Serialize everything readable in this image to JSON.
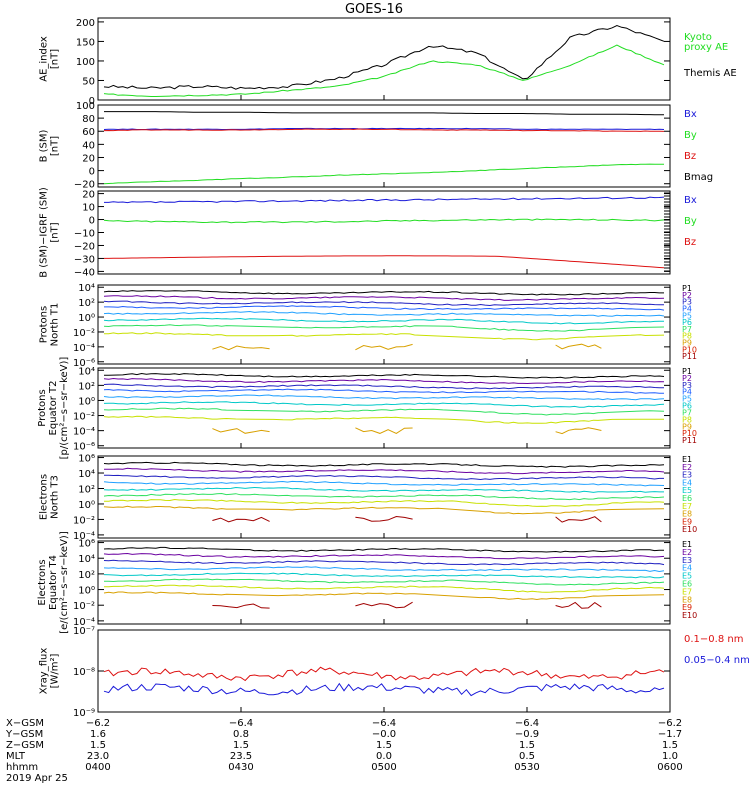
{
  "title": "GOES-16",
  "colors": {
    "black": "#000000",
    "blue": "#1a1ad9",
    "green": "#22dd22",
    "red": "#dd1111",
    "brown": "#a00000",
    "yellow": "#cccc00"
  },
  "panels": [
    {
      "id": "ae",
      "ylabel": [
        "AE_index",
        "[nT]"
      ],
      "ylim": [
        0,
        210
      ],
      "scale": "linear",
      "ticks": [
        {
          "v": 0,
          "t": "0"
        },
        {
          "v": 50,
          "t": "50"
        },
        {
          "v": 100,
          "t": "100"
        },
        {
          "v": 150,
          "t": "150"
        },
        {
          "v": 200,
          "t": "200"
        }
      ],
      "legend": [
        {
          "text": "Kyoto",
          "color": "#22dd22"
        },
        {
          "text": "proxy AE",
          "color": "#22dd22"
        },
        {
          "text": "Themis AE",
          "color": "#000000"
        }
      ]
    },
    {
      "id": "bsm",
      "ylabel": [
        "B (SM)",
        "[nT]"
      ],
      "ylim": [
        -25,
        100
      ],
      "scale": "linear",
      "ticks": [
        {
          "v": -20,
          "t": "−20"
        },
        {
          "v": 0,
          "t": "0"
        },
        {
          "v": 20,
          "t": "20"
        },
        {
          "v": 40,
          "t": "40"
        },
        {
          "v": 60,
          "t": "60"
        },
        {
          "v": 80,
          "t": "80"
        },
        {
          "v": 100,
          "t": "100"
        }
      ],
      "legend": [
        {
          "text": "Bx",
          "color": "#1a1ad9"
        },
        {
          "text": "By",
          "color": "#22dd22"
        },
        {
          "text": "Bz",
          "color": "#dd1111"
        },
        {
          "text": "Bmag",
          "color": "#000000"
        }
      ]
    },
    {
      "id": "bigrf",
      "ylabel": [
        "B (SM)−IGRF (SM)",
        "[nT]"
      ],
      "ylim": [
        -42,
        22
      ],
      "scale": "linear",
      "ticks": [
        {
          "v": -40,
          "t": "−40"
        },
        {
          "v": -30,
          "t": "−30"
        },
        {
          "v": -20,
          "t": "−20"
        },
        {
          "v": -10,
          "t": "−10"
        },
        {
          "v": 0,
          "t": "0"
        },
        {
          "v": 10,
          "t": "10"
        },
        {
          "v": 20,
          "t": "20"
        }
      ],
      "legend": [
        {
          "text": "Bx",
          "color": "#1a1ad9"
        },
        {
          "text": "By",
          "color": "#22dd22"
        },
        {
          "text": "Bz",
          "color": "#dd1111"
        }
      ]
    },
    {
      "id": "pn",
      "ylabel": [
        "Protons",
        "North T1"
      ],
      "ylim": [
        -6.3,
        4.3
      ],
      "scale": "log",
      "ticks": [
        {
          "v": 4,
          "t": "10⁴"
        },
        {
          "v": 2,
          "t": "10²"
        },
        {
          "v": 0,
          "t": "10⁰"
        },
        {
          "v": -2,
          "t": "10⁻²"
        },
        {
          "v": -4,
          "t": "10⁻⁴"
        },
        {
          "v": -6,
          "t": "10⁻⁶"
        }
      ],
      "channels": [
        {
          "name": "P1",
          "color": "#000000"
        },
        {
          "name": "P2",
          "color": "#6a00a0"
        },
        {
          "name": "P3",
          "color": "#2020c0"
        },
        {
          "name": "P4",
          "color": "#2060ff"
        },
        {
          "name": "P5",
          "color": "#20a0ff"
        },
        {
          "name": "P6",
          "color": "#00c8c8"
        },
        {
          "name": "P7",
          "color": "#30e060"
        },
        {
          "name": "P8",
          "color": "#c8e000"
        },
        {
          "name": "P9",
          "color": "#d8a000"
        },
        {
          "name": "P10",
          "color": "#d82000"
        },
        {
          "name": "P11",
          "color": "#a00000"
        }
      ]
    },
    {
      "id": "pe",
      "ylabel": [
        "Protons",
        "Equator T2",
        "[p/(cm²−s−sr−keV)]"
      ],
      "ylim": [
        -6.3,
        4.3
      ],
      "scale": "log",
      "ticks": [
        {
          "v": 4,
          "t": "10⁴"
        },
        {
          "v": 2,
          "t": "10²"
        },
        {
          "v": 0,
          "t": "10⁰"
        },
        {
          "v": -2,
          "t": "10⁻²"
        },
        {
          "v": -4,
          "t": "10⁻⁴"
        },
        {
          "v": -6,
          "t": "10⁻⁶"
        }
      ],
      "channels": [
        {
          "name": "P1",
          "color": "#000000"
        },
        {
          "name": "P2",
          "color": "#6a00a0"
        },
        {
          "name": "P3",
          "color": "#2020c0"
        },
        {
          "name": "P4",
          "color": "#2060ff"
        },
        {
          "name": "P5",
          "color": "#20a0ff"
        },
        {
          "name": "P6",
          "color": "#00c8c8"
        },
        {
          "name": "P7",
          "color": "#30e060"
        },
        {
          "name": "P8",
          "color": "#c8e000"
        },
        {
          "name": "P9",
          "color": "#d8a000"
        },
        {
          "name": "P10",
          "color": "#d82000"
        },
        {
          "name": "P11",
          "color": "#a00000"
        }
      ]
    },
    {
      "id": "en",
      "ylabel": [
        "Electrons",
        "North T3"
      ],
      "ylim": [
        -4.4,
        6.2
      ],
      "scale": "log",
      "ticks": [
        {
          "v": 6,
          "t": "10⁶"
        },
        {
          "v": 4,
          "t": "10⁴"
        },
        {
          "v": 2,
          "t": "10²"
        },
        {
          "v": 0,
          "t": "10⁰"
        },
        {
          "v": -2,
          "t": "10⁻²"
        },
        {
          "v": -4,
          "t": "10⁻⁴"
        }
      ],
      "channels": [
        {
          "name": "E1",
          "color": "#000000"
        },
        {
          "name": "E2",
          "color": "#6a00a0"
        },
        {
          "name": "E3",
          "color": "#2020c0"
        },
        {
          "name": "E4",
          "color": "#20a0ff"
        },
        {
          "name": "E5",
          "color": "#00c8c8"
        },
        {
          "name": "E6",
          "color": "#30e060"
        },
        {
          "name": "E7",
          "color": "#c8e000"
        },
        {
          "name": "E8",
          "color": "#d8a000"
        },
        {
          "name": "E9",
          "color": "#d82000"
        },
        {
          "name": "E10",
          "color": "#a00000"
        }
      ]
    },
    {
      "id": "ee",
      "ylabel": [
        "Electrons",
        "Equator T4",
        "[e/(cm²−s−sr−keV)]"
      ],
      "ylim": [
        -4.4,
        6.2
      ],
      "scale": "log",
      "ticks": [
        {
          "v": 6,
          "t": "10⁶"
        },
        {
          "v": 4,
          "t": "10⁴"
        },
        {
          "v": 2,
          "t": "10²"
        },
        {
          "v": 0,
          "t": "10⁰"
        },
        {
          "v": -2,
          "t": "10⁻²"
        },
        {
          "v": -4,
          "t": "10⁻⁴"
        }
      ],
      "channels": [
        {
          "name": "E1",
          "color": "#000000"
        },
        {
          "name": "E2",
          "color": "#6a00a0"
        },
        {
          "name": "E3",
          "color": "#2020c0"
        },
        {
          "name": "E4",
          "color": "#20a0ff"
        },
        {
          "name": "E5",
          "color": "#00c8c8"
        },
        {
          "name": "E6",
          "color": "#30e060"
        },
        {
          "name": "E7",
          "color": "#c8e000"
        },
        {
          "name": "E8",
          "color": "#d8a000"
        },
        {
          "name": "E9",
          "color": "#d82000"
        },
        {
          "name": "E10",
          "color": "#a00000"
        }
      ]
    },
    {
      "id": "xray",
      "ylabel": [
        "Xray_flux",
        "[W/m²]"
      ],
      "ylim": [
        -9.0,
        -7.0
      ],
      "scale": "log",
      "ticks": [
        {
          "v": -7,
          "t": "10⁻⁷"
        },
        {
          "v": -8,
          "t": "10⁻⁸"
        },
        {
          "v": -9,
          "t": "10⁻⁹"
        }
      ],
      "legend": [
        {
          "text": "0.1−0.8 nm",
          "color": "#dd1111"
        },
        {
          "text": "0.05−0.4 nm",
          "color": "#1a1ad9"
        }
      ]
    }
  ],
  "xaxis": {
    "rows": [
      {
        "label": "X−GSM",
        "values": [
          "−6.2",
          "−6.4",
          "−6.4",
          "−6.4",
          "−6.2"
        ]
      },
      {
        "label": "Y−GSM",
        "values": [
          "1.6",
          "0.8",
          "−0.0",
          "−0.9",
          "−1.7"
        ]
      },
      {
        "label": "Z−GSM",
        "values": [
          "1.5",
          "1.5",
          "1.5",
          "1.5",
          "1.5"
        ]
      },
      {
        "label": "MLT",
        "values": [
          "23.0",
          "23.5",
          "0.0",
          "0.5",
          "1.0"
        ]
      },
      {
        "label": "hhmm",
        "values": [
          "0400",
          "0430",
          "0500",
          "0530",
          "0600"
        ]
      }
    ],
    "date": "2019 Apr 25"
  },
  "chart_data": {
    "type": "line",
    "title": "GOES-16",
    "x_unit": "UT hhmm",
    "x": [
      "0400",
      "0410",
      "0420",
      "0430",
      "0440",
      "0450",
      "0500",
      "0510",
      "0520",
      "0530",
      "0540",
      "0550",
      "0600"
    ],
    "series": [
      {
        "name": "Themis AE",
        "values": [
          35,
          30,
          35,
          30,
          35,
          55,
          90,
          140,
          120,
          50,
          160,
          190,
          150
        ]
      },
      {
        "name": "Kyoto proxy AE",
        "values": [
          15,
          10,
          12,
          15,
          25,
          35,
          60,
          100,
          90,
          50,
          90,
          140,
          90
        ]
      },
      {
        "name": "Bmag",
        "values": [
          90,
          90,
          89,
          89,
          88,
          88,
          88,
          88,
          87,
          87,
          86,
          86,
          85
        ]
      },
      {
        "name": "Bx",
        "values": [
          63,
          63,
          63,
          63,
          64,
          64,
          64,
          64,
          64,
          63,
          63,
          63,
          63
        ]
      },
      {
        "name": "Bz",
        "values": [
          61,
          62,
          62,
          62,
          63,
          63,
          63,
          62,
          62,
          61,
          61,
          60,
          60
        ]
      },
      {
        "name": "By",
        "values": [
          -20,
          -17,
          -15,
          -12,
          -10,
          -7,
          -5,
          -3,
          0,
          3,
          6,
          9,
          10
        ]
      },
      {
        "name": "0.1−0.8 nm",
        "values": [
          7.5e-09,
          8.5e-09,
          8e-09,
          7.8e-09,
          8.2e-09,
          8.3e-09,
          8.5e-09,
          8.7e-09,
          8.4e-09,
          8.2e-09,
          8.5e-09,
          7.9e-09,
          6.5e-09
        ]
      },
      {
        "name": "0.05−0.4 nm",
        "values": [
          3.2e-09,
          3.5e-09,
          3.4e-09,
          3.3e-09,
          3.5e-09,
          3.6e-09,
          3.8e-09,
          4e-09,
          3.9e-09,
          3.6e-09,
          4e-09,
          3.4e-09,
          3.1e-09
        ]
      }
    ]
  }
}
